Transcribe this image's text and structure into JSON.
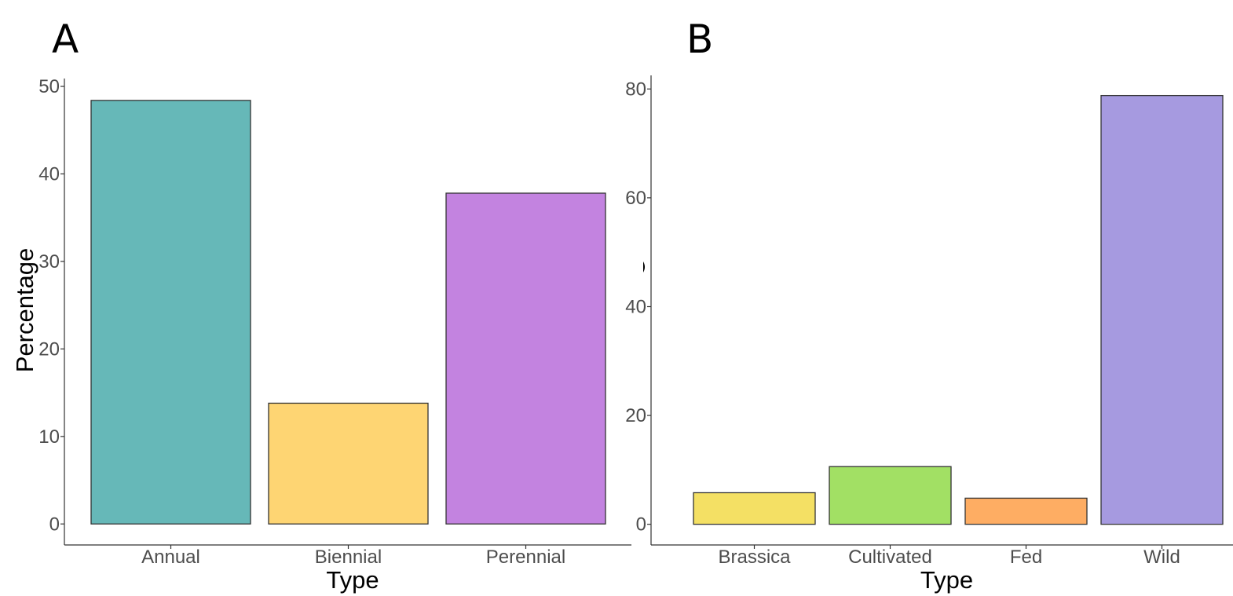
{
  "chart_data": [
    {
      "type": "bar",
      "panel_label": "A",
      "categories": [
        "Annual",
        "Biennial",
        "Perennial"
      ],
      "values": [
        48.4,
        13.8,
        37.8
      ],
      "colors": [
        "#66b8b8",
        "#fed573",
        "#c383e0"
      ],
      "xlabel": "Type",
      "ylabel": "Percentage",
      "yticks": [
        0,
        10,
        20,
        30,
        40,
        50
      ],
      "ylim": [
        -2.4,
        50.9
      ],
      "grid": false
    },
    {
      "type": "bar",
      "panel_label": "B",
      "categories": [
        "Brassica",
        "Cultivated",
        "Fed",
        "Wild"
      ],
      "values": [
        5.8,
        10.6,
        4.8,
        78.8
      ],
      "colors": [
        "#f4e064",
        "#a2e064",
        "#fead63",
        "#a69ae0"
      ],
      "xlabel": "Type",
      "ylabel": "",
      "yticks": [
        0,
        20,
        40,
        60,
        80
      ],
      "ylim": [
        -3.8,
        82.5
      ],
      "grid": false
    }
  ]
}
